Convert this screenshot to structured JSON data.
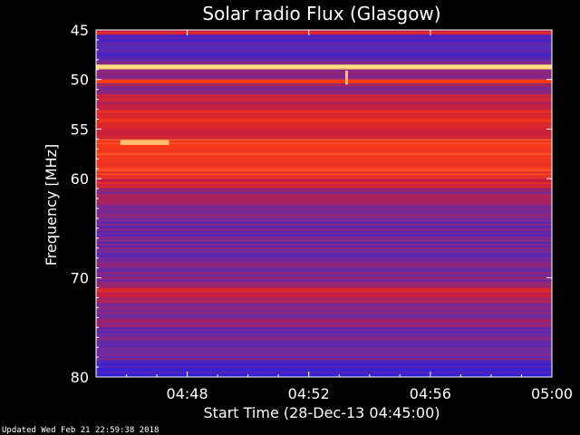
{
  "chart_data": {
    "type": "heatmap",
    "title": "Solar radio Flux (Glasgow)",
    "xlabel": "Start Time (28-Dec-13 04:45:00)",
    "ylabel": "Frequency [MHz]",
    "x_tick_labels": [
      "04:48",
      "04:52",
      "04:56",
      "05:00"
    ],
    "x_tick_minutes": [
      48,
      52,
      56,
      60
    ],
    "xlim_minutes": [
      45,
      60
    ],
    "y_tick_labels": [
      "45",
      "50",
      "55",
      "60",
      "70",
      "80"
    ],
    "y_tick_values": [
      45,
      50,
      55,
      60,
      70,
      80
    ],
    "ylim": [
      45,
      80
    ],
    "y_inverted": true,
    "colormap": [
      "#1e1ee6",
      "#6e2a9e",
      "#c81e3c",
      "#ff3a10",
      "#ffe080"
    ],
    "intensity_profile": [
      {
        "freq_from": 45.0,
        "freq_to": 45.5,
        "level": 0.55
      },
      {
        "freq_from": 45.5,
        "freq_to": 48.0,
        "level": 0.15
      },
      {
        "freq_from": 48.0,
        "freq_to": 48.5,
        "level": 0.3
      },
      {
        "freq_from": 48.5,
        "freq_to": 49.0,
        "level": 1.0
      },
      {
        "freq_from": 49.0,
        "freq_to": 50.0,
        "level": 0.3
      },
      {
        "freq_from": 50.0,
        "freq_to": 50.3,
        "level": 0.7
      },
      {
        "freq_from": 50.3,
        "freq_to": 51.5,
        "level": 0.35
      },
      {
        "freq_from": 51.5,
        "freq_to": 53.0,
        "level": 0.5
      },
      {
        "freq_from": 53.0,
        "freq_to": 55.0,
        "level": 0.62
      },
      {
        "freq_from": 55.0,
        "freq_to": 56.0,
        "level": 0.55
      },
      {
        "freq_from": 56.0,
        "freq_to": 60.0,
        "level": 0.72
      },
      {
        "freq_from": 60.0,
        "freq_to": 61.0,
        "level": 0.58
      },
      {
        "freq_from": 61.0,
        "freq_to": 64.0,
        "level": 0.35
      },
      {
        "freq_from": 64.0,
        "freq_to": 68.0,
        "level": 0.25
      },
      {
        "freq_from": 68.0,
        "freq_to": 71.0,
        "level": 0.3
      },
      {
        "freq_from": 71.0,
        "freq_to": 72.5,
        "level": 0.45
      },
      {
        "freq_from": 72.5,
        "freq_to": 75.0,
        "level": 0.3
      },
      {
        "freq_from": 75.0,
        "freq_to": 78.5,
        "level": 0.25
      },
      {
        "freq_from": 78.5,
        "freq_to": 80.0,
        "level": 0.12
      }
    ],
    "bright_lines": [
      {
        "freq": 48.7,
        "level": 1.0
      },
      {
        "freq": 50.2,
        "level": 0.75
      },
      {
        "freq": 71.3,
        "level": 0.6
      }
    ],
    "bursts": [
      {
        "time_min": 53.2,
        "freq_from": 49.1,
        "freq_to": 50.5
      },
      {
        "time_min": 45.8,
        "freq_from": 56.1,
        "freq_to": 56.6,
        "time_to_min": 47.4
      }
    ]
  },
  "footer": {
    "updated": "Updated Wed Feb 21 22:59:38 2018"
  }
}
